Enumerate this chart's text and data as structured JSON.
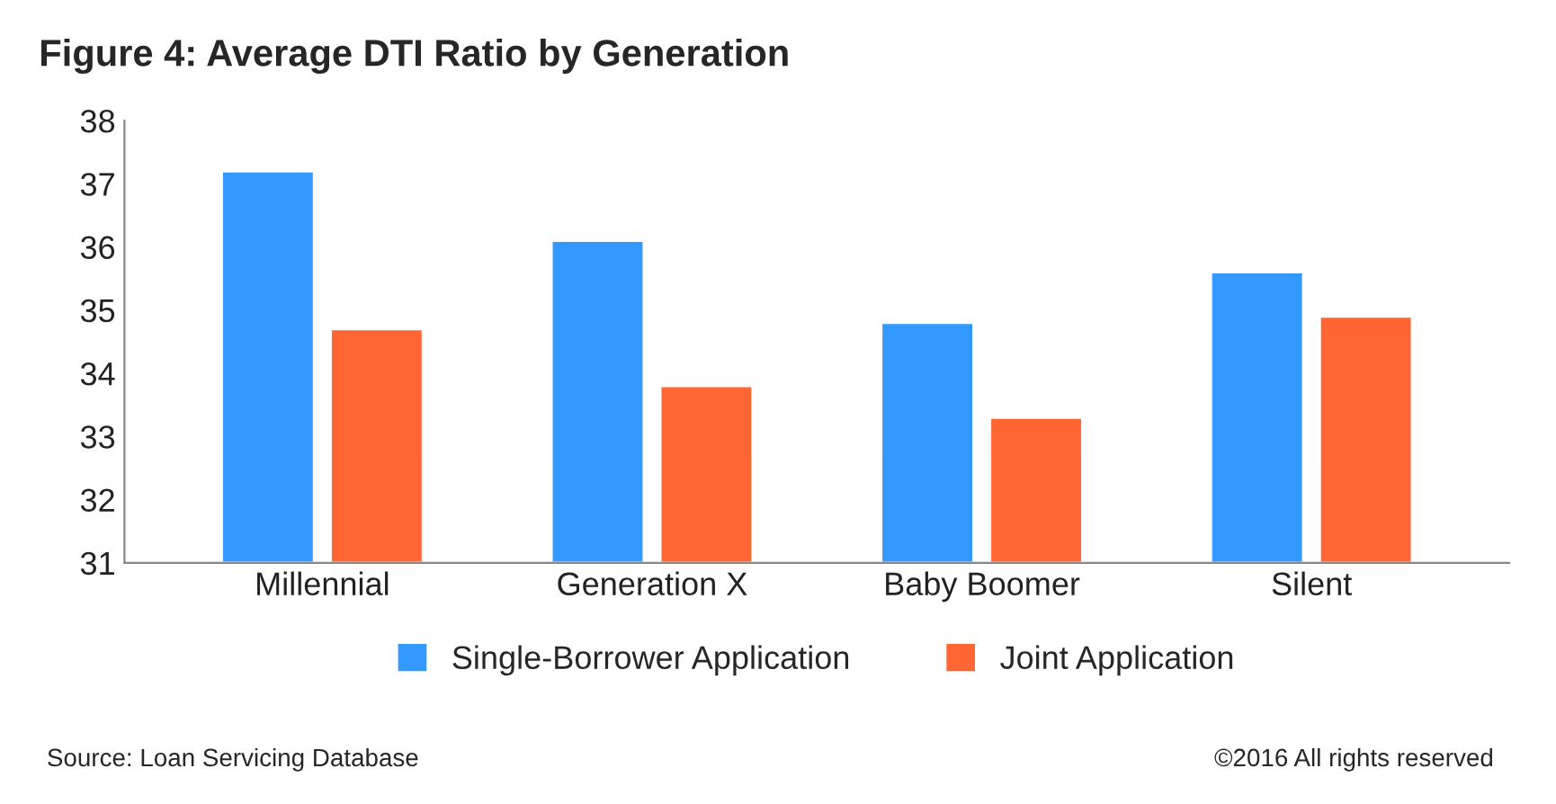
{
  "chart_data": {
    "type": "bar",
    "title": "Figure 4: Average DTI Ratio by Generation",
    "categories": [
      "Millennial",
      "Generation X",
      "Baby Boomer",
      "Silent"
    ],
    "series": [
      {
        "name": "Single-Borrower Application",
        "color": "#3399ff",
        "values": [
          37.2,
          36.1,
          34.8,
          35.6
        ]
      },
      {
        "name": "Joint Application",
        "color": "#ff6633",
        "values": [
          34.7,
          33.8,
          33.3,
          34.9
        ]
      }
    ],
    "ylim": [
      31,
      38
    ],
    "yticks": [
      31,
      32,
      33,
      34,
      35,
      36,
      37,
      38
    ],
    "grid": false,
    "legend": "bottom",
    "annotations": [
      "Source: Loan Servicing Database",
      "©2016 All rights reserved"
    ]
  }
}
